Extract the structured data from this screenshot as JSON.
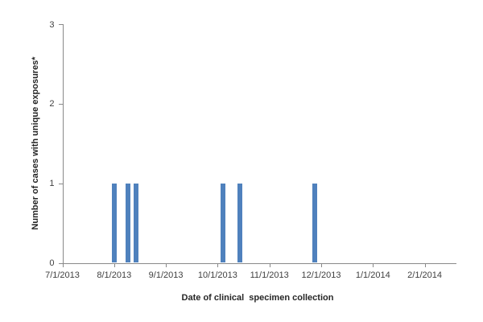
{
  "chart_data": {
    "type": "bar",
    "title": "",
    "xlabel": "Date of clinical  specimen collection",
    "ylabel": "Number of cases with unique exposures*",
    "x_tick_labels": [
      "7/1/2013",
      "8/1/2013",
      "9/1/2013",
      "10/1/2013",
      "11/1/2013",
      "12/1/2013",
      "1/1/2014",
      "2/1/2014"
    ],
    "y_tick_labels": [
      "0",
      "1",
      "2",
      "3"
    ],
    "ylim": [
      0,
      3
    ],
    "grid": false,
    "legend": "none",
    "bars": [
      {
        "date": "8/1/2013",
        "value": 1,
        "months_from_first_tick": 1.0
      },
      {
        "date": "8/9/2013",
        "value": 1,
        "months_from_first_tick": 1.26
      },
      {
        "date": "8/14/2013",
        "value": 1,
        "months_from_first_tick": 1.42
      },
      {
        "date": "10/4/2013",
        "value": 1,
        "months_from_first_tick": 3.1
      },
      {
        "date": "10/14/2013",
        "value": 1,
        "months_from_first_tick": 3.43
      },
      {
        "date": "11/27/2013",
        "value": 1,
        "months_from_first_tick": 4.87
      }
    ],
    "colors": {
      "bar_fill": "#4F81BD",
      "axis_line": "#898989",
      "tick_text": "#3F3F3F",
      "title_text": "#262626",
      "background": "#FFFFFF"
    }
  }
}
